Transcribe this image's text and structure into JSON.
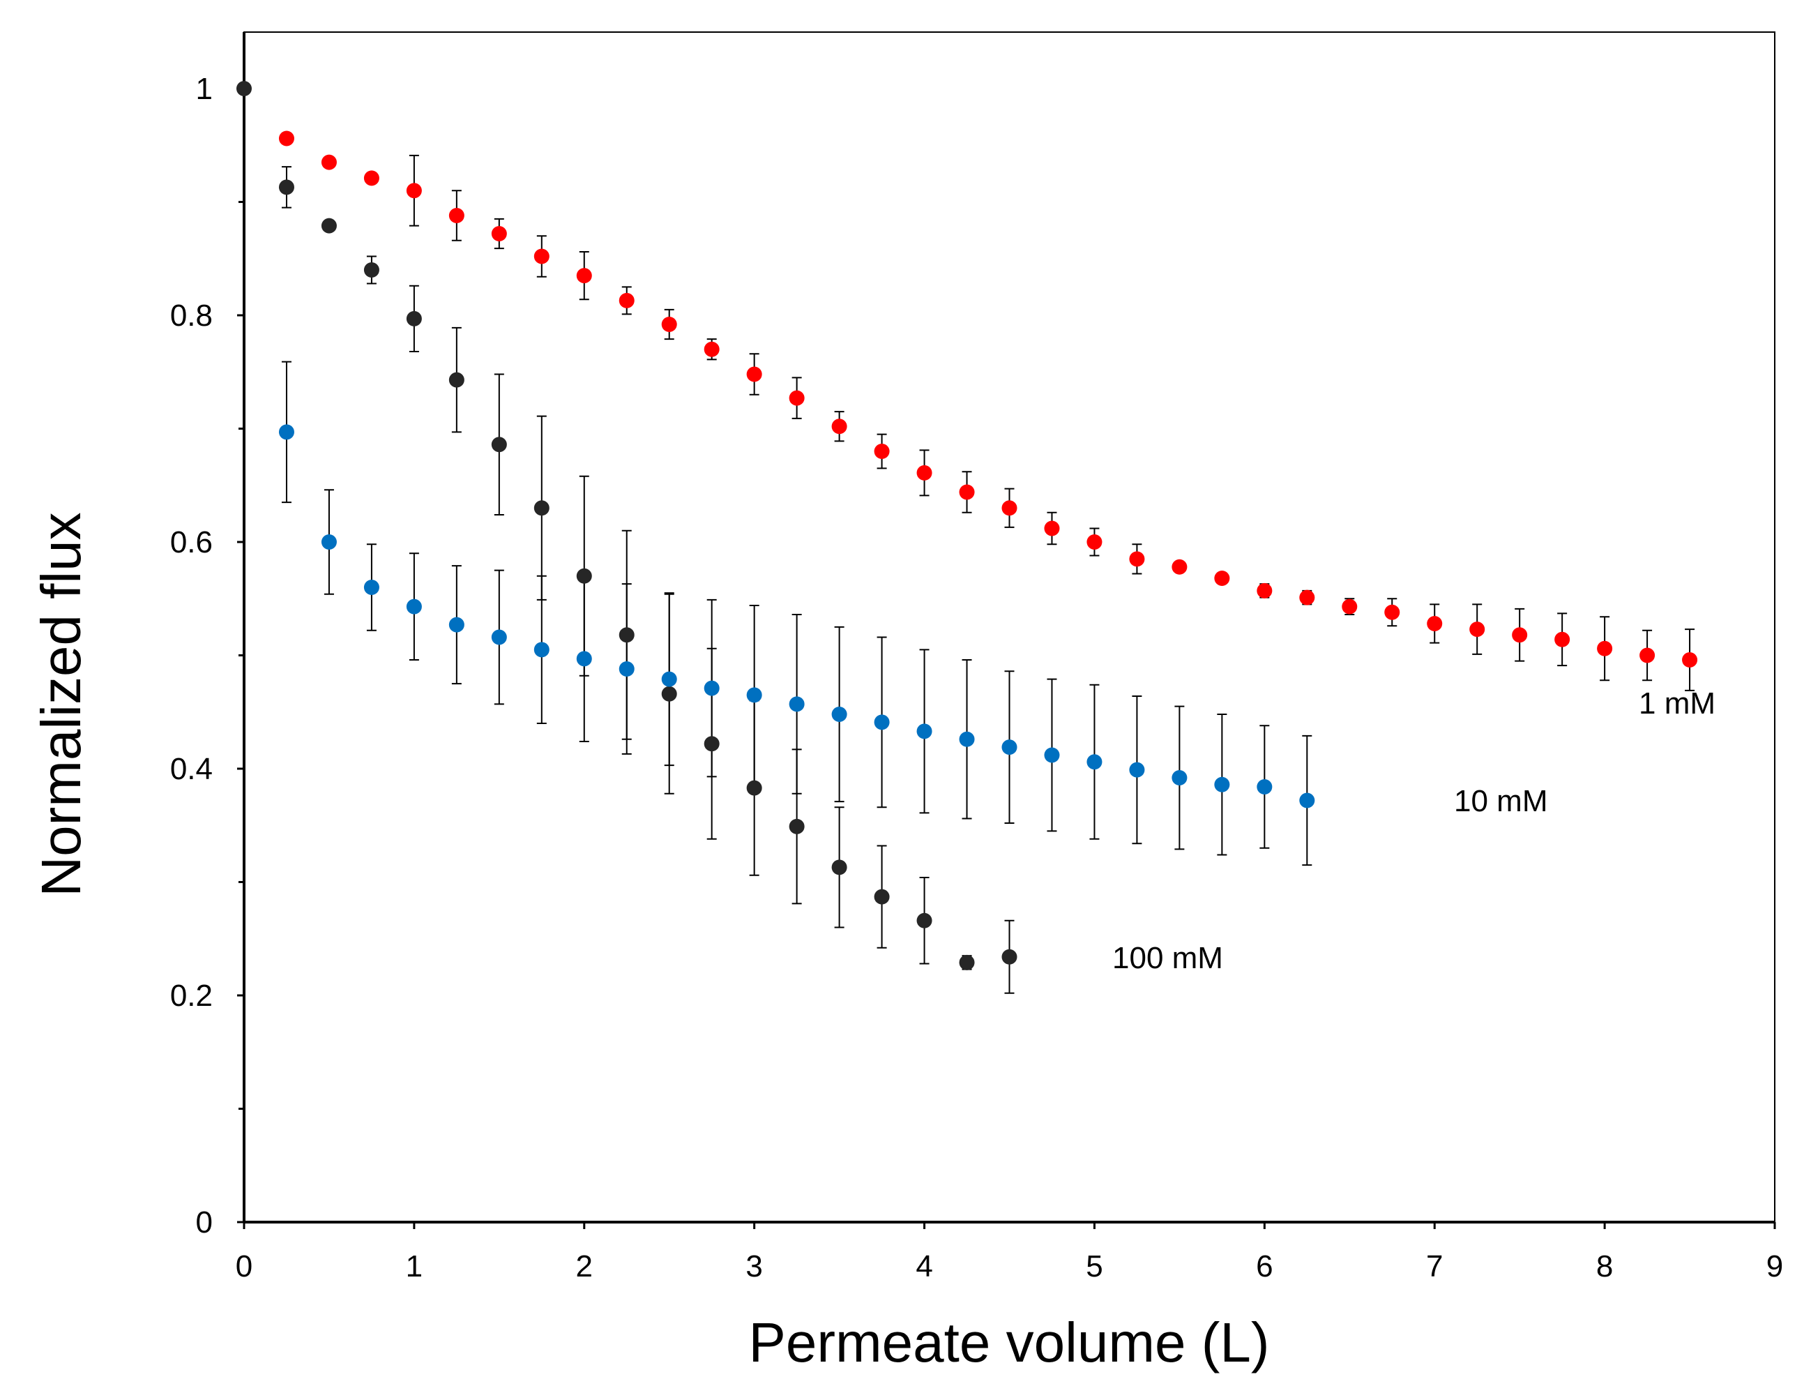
{
  "chart_data": {
    "type": "scatter",
    "title": "",
    "xlabel": "Permeate volume (L)",
    "ylabel": "Normalized flux",
    "xlim": [
      0,
      9
    ],
    "ylim": [
      0,
      1.05
    ],
    "xticks": [
      0,
      1,
      2,
      3,
      4,
      5,
      6,
      7,
      8,
      9
    ],
    "yticks": [
      0,
      0.2,
      0.4,
      0.6,
      0.8,
      1
    ],
    "xtick_labels": [
      "0",
      "1",
      "2",
      "3",
      "4",
      "5",
      "6",
      "7",
      "8",
      "9"
    ],
    "ytick_labels": [
      "0",
      "0.2",
      "0.4",
      "0.6",
      "0.8",
      "1"
    ],
    "grid": false,
    "legend": "none",
    "series": [
      {
        "name": "1 mM",
        "label": "1 mM",
        "color": "#ff0000",
        "x": [
          0.25,
          0.5,
          0.75,
          1.0,
          1.25,
          1.5,
          1.75,
          2.0,
          2.25,
          2.5,
          2.75,
          3.0,
          3.25,
          3.5,
          3.75,
          4.0,
          4.25,
          4.5,
          4.75,
          5.0,
          5.25,
          5.5,
          5.75,
          6.0,
          6.25,
          6.5,
          6.75,
          7.0,
          7.25,
          7.5,
          7.75,
          8.0,
          8.25,
          8.5
        ],
        "y": [
          0.956,
          0.935,
          0.921,
          0.91,
          0.888,
          0.872,
          0.852,
          0.835,
          0.813,
          0.792,
          0.77,
          0.748,
          0.727,
          0.702,
          0.68,
          0.661,
          0.644,
          0.63,
          0.612,
          0.6,
          0.585,
          0.578,
          0.568,
          0.557,
          0.551,
          0.543,
          0.538,
          0.528,
          0.523,
          0.518,
          0.514,
          0.506,
          0.5,
          0.496
        ],
        "err": [
          0.0,
          0.0,
          0.0,
          0.031,
          0.022,
          0.013,
          0.018,
          0.021,
          0.012,
          0.013,
          0.009,
          0.018,
          0.018,
          0.013,
          0.015,
          0.02,
          0.018,
          0.017,
          0.014,
          0.012,
          0.013,
          0.0,
          0.0,
          0.006,
          0.006,
          0.007,
          0.012,
          0.017,
          0.022,
          0.023,
          0.023,
          0.028,
          0.022,
          0.027
        ]
      },
      {
        "name": "10 mM",
        "label": "10 mM",
        "color": "#0070c0",
        "x": [
          0.25,
          0.5,
          0.75,
          1.0,
          1.25,
          1.5,
          1.75,
          2.0,
          2.25,
          2.5,
          2.75,
          3.0,
          3.25,
          3.5,
          3.75,
          4.0,
          4.25,
          4.5,
          4.75,
          5.0,
          5.25,
          5.5,
          5.75,
          6.0,
          6.25
        ],
        "y": [
          0.697,
          0.6,
          0.56,
          0.543,
          0.527,
          0.516,
          0.505,
          0.497,
          0.488,
          0.479,
          0.471,
          0.465,
          0.457,
          0.448,
          0.441,
          0.433,
          0.426,
          0.419,
          0.412,
          0.406,
          0.399,
          0.392,
          0.386,
          0.384,
          0.372
        ],
        "err": [
          0.062,
          0.046,
          0.038,
          0.047,
          0.052,
          0.059,
          0.065,
          0.073,
          0.075,
          0.076,
          0.078,
          0.079,
          0.079,
          0.077,
          0.075,
          0.072,
          0.07,
          0.067,
          0.067,
          0.068,
          0.065,
          0.063,
          0.062,
          0.054,
          0.057
        ]
      },
      {
        "name": "100 mM",
        "label": "100 mM",
        "color": "#262626",
        "x": [
          0.0,
          0.25,
          0.5,
          0.75,
          1.0,
          1.25,
          1.5,
          1.75,
          2.0,
          2.25,
          2.5,
          2.75,
          3.0,
          3.25,
          3.5,
          3.75,
          4.0,
          4.25,
          4.5
        ],
        "y": [
          1.0,
          0.913,
          0.879,
          0.84,
          0.797,
          0.743,
          0.686,
          0.63,
          0.57,
          0.518,
          0.466,
          0.422,
          0.383,
          0.349,
          0.313,
          0.287,
          0.266,
          0.229,
          0.234
        ],
        "err": [
          0.0,
          0.018,
          0.0,
          0.012,
          0.029,
          0.046,
          0.062,
          0.081,
          0.088,
          0.092,
          0.088,
          0.084,
          0.077,
          0.068,
          0.053,
          0.045,
          0.038,
          0.006,
          0.032
        ]
      }
    ]
  }
}
